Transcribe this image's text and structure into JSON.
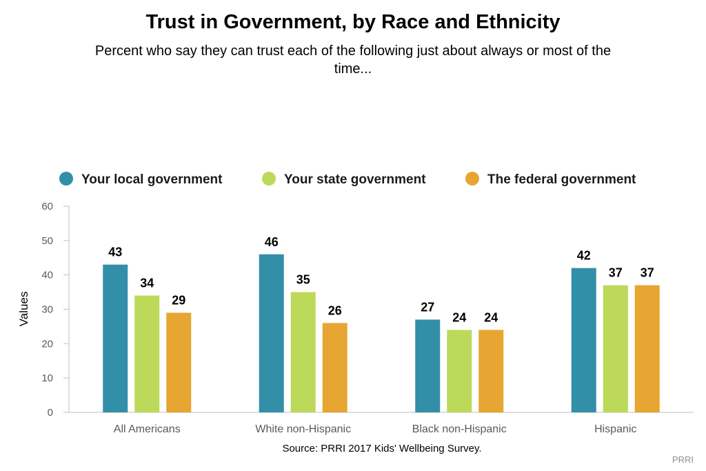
{
  "chart_data": {
    "type": "bar",
    "title": "Trust in Government, by Race and Ethnicity",
    "subtitle_lines": [
      "Percent who say they can trust each of the following just about always or most of the",
      "time..."
    ],
    "ylabel": "Values",
    "xlabel": "",
    "ylim": [
      0,
      60
    ],
    "yticks": [
      0,
      10,
      20,
      30,
      40,
      50,
      60
    ],
    "grid": false,
    "legend_position": "top",
    "categories": [
      "All Americans",
      "White non-Hispanic",
      "Black non-Hispanic",
      "Hispanic"
    ],
    "series": [
      {
        "name": "Your local government",
        "color": "#338ea7",
        "values": [
          43,
          46,
          27,
          42
        ]
      },
      {
        "name": "Your state government",
        "color": "#bcd95a",
        "values": [
          34,
          35,
          24,
          37
        ]
      },
      {
        "name": "The federal government",
        "color": "#e6a631",
        "values": [
          29,
          26,
          24,
          37
        ]
      }
    ],
    "source": "Source: PRRI 2017 Kids' Wellbeing Survey.",
    "credit": "PRRI"
  }
}
